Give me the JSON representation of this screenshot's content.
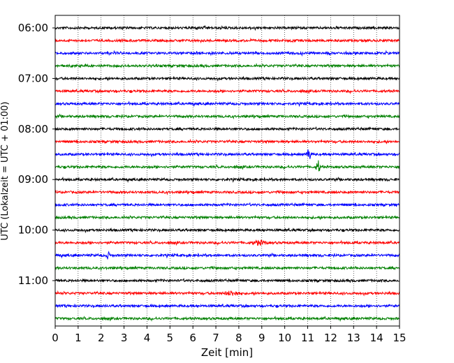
{
  "chart_data": {
    "type": "line",
    "title": "",
    "xlabel": "Zeit  [min]",
    "ylabel": "UTC (Lokalzeit = UTC + 01:00)",
    "xlim": [
      0,
      15
    ],
    "x_ticks": [
      "0",
      "1",
      "2",
      "3",
      "4",
      "5",
      "6",
      "7",
      "8",
      "9",
      "10",
      "11",
      "12",
      "13",
      "14",
      "15"
    ],
    "y_ticks": [
      "06:00",
      "07:00",
      "08:00",
      "09:00",
      "10:00",
      "11:00"
    ],
    "y_tick_slots": [
      0,
      4,
      8,
      12,
      16,
      20
    ],
    "trace_interval_minutes": 15,
    "start_time_utc": "06:00",
    "trace_count": 24,
    "trace_colors": [
      "#000000",
      "#ff0000",
      "#0000ff",
      "#008000"
    ],
    "grid": "vertical dotted lines at each minute",
    "legend": "none",
    "events": [
      {
        "trace_start": "08:30",
        "minute": 11.05,
        "amplitude": "large",
        "color": "#0000ff"
      },
      {
        "trace_start": "08:45",
        "minute": 11.45,
        "amplitude": "large",
        "color": "#008000"
      },
      {
        "trace_start": "10:30",
        "minute": 2.3,
        "amplitude": "medium",
        "color": "#0000ff"
      },
      {
        "trace_start": "10:15",
        "minute": 8.9,
        "amplitude": "small",
        "color": "#ff0000"
      },
      {
        "trace_start": "11:15",
        "minute": 7.7,
        "amplitude": "small",
        "color": "#ff0000"
      }
    ]
  }
}
